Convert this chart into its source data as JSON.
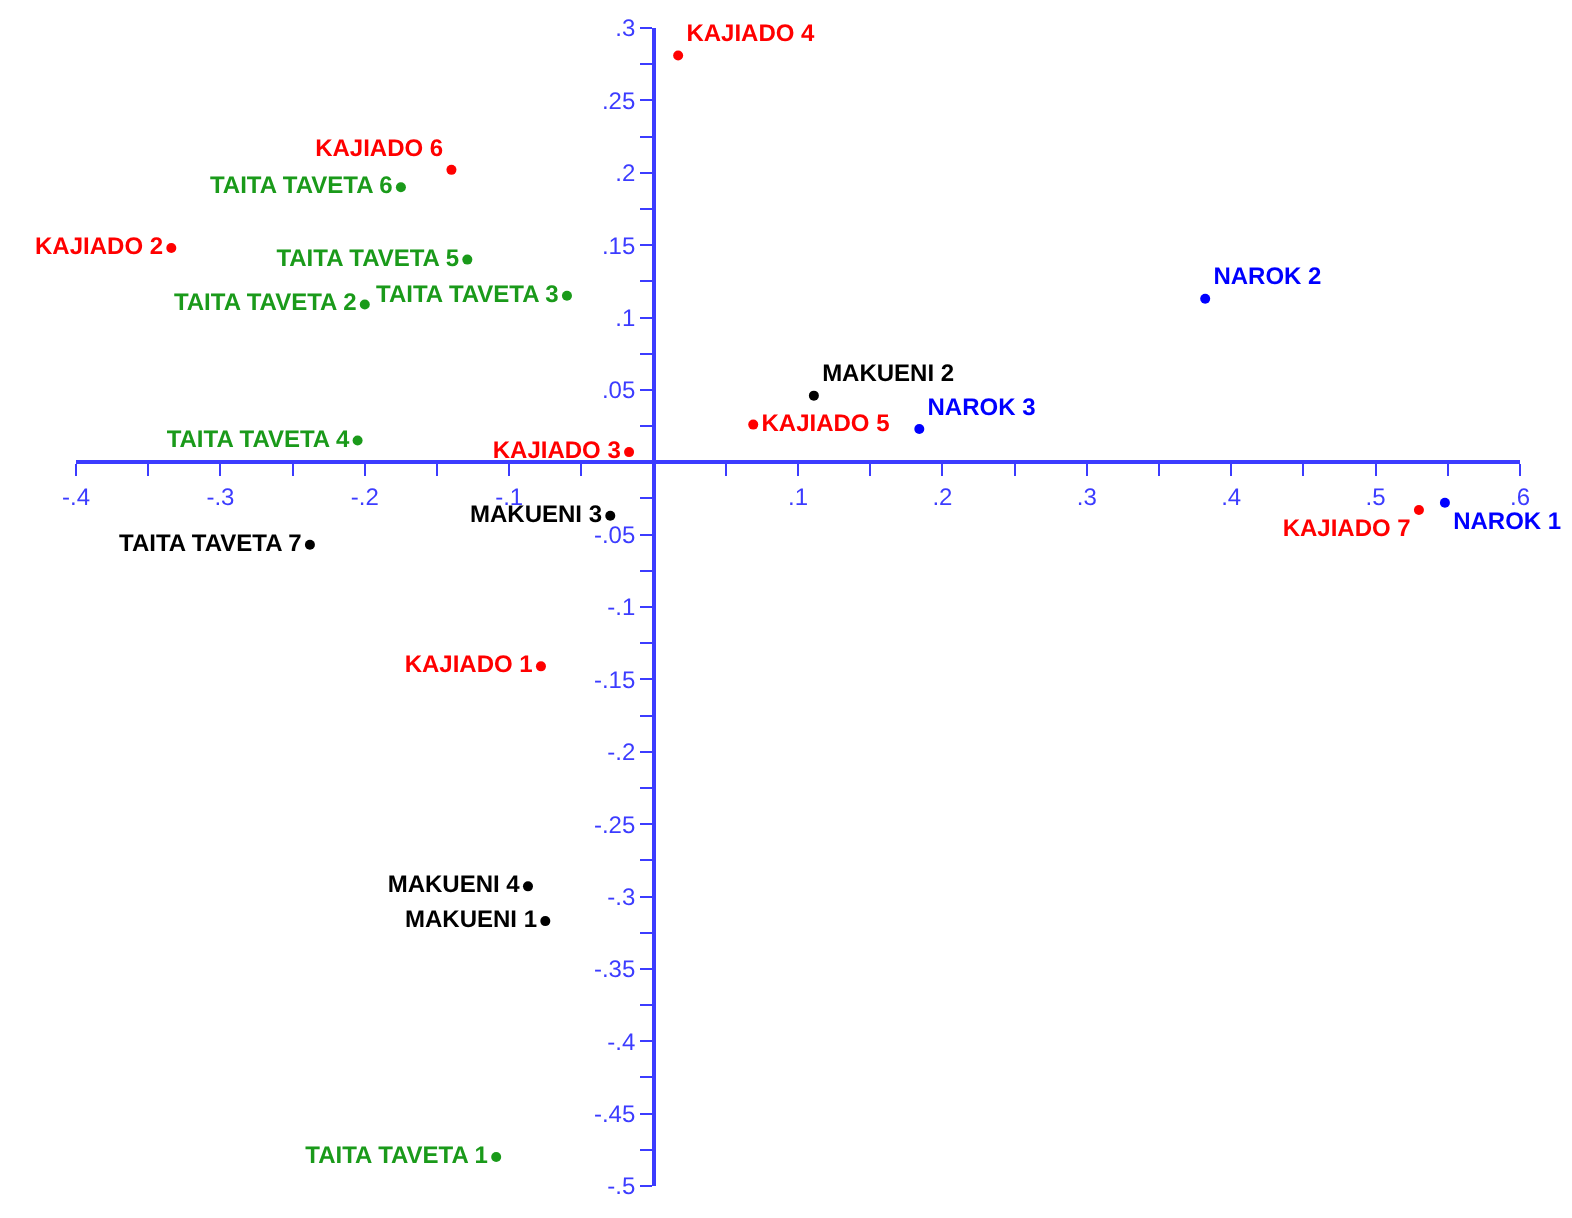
{
  "chart_data": {
    "type": "scatter",
    "marker": "circle",
    "legend": false,
    "xlim": [
      -0.4,
      0.6
    ],
    "ylim": [
      -0.5,
      0.3
    ],
    "xticks": [
      {
        "value": -0.4,
        "label": "-.4"
      },
      {
        "value": -0.35,
        "label": null
      },
      {
        "value": -0.3,
        "label": "-.3"
      },
      {
        "value": -0.25,
        "label": null
      },
      {
        "value": -0.2,
        "label": "-.2"
      },
      {
        "value": -0.15,
        "label": null
      },
      {
        "value": -0.1,
        "label": "-.1"
      },
      {
        "value": -0.05,
        "label": null
      },
      {
        "value": 0.05,
        "label": null
      },
      {
        "value": 0.1,
        "label": ".1"
      },
      {
        "value": 0.15,
        "label": null
      },
      {
        "value": 0.2,
        "label": ".2"
      },
      {
        "value": 0.25,
        "label": null
      },
      {
        "value": 0.3,
        "label": ".3"
      },
      {
        "value": 0.35,
        "label": null
      },
      {
        "value": 0.4,
        "label": ".4"
      },
      {
        "value": 0.45,
        "label": null
      },
      {
        "value": 0.5,
        "label": ".5"
      },
      {
        "value": 0.55,
        "label": null
      },
      {
        "value": 0.6,
        "label": ".6"
      }
    ],
    "yticks": [
      {
        "value": 0.3,
        "label": ".3"
      },
      {
        "value": 0.275,
        "label": null
      },
      {
        "value": 0.25,
        "label": ".25"
      },
      {
        "value": 0.225,
        "label": null
      },
      {
        "value": 0.2,
        "label": ".2"
      },
      {
        "value": 0.175,
        "label": null
      },
      {
        "value": 0.15,
        "label": ".15"
      },
      {
        "value": 0.125,
        "label": null
      },
      {
        "value": 0.1,
        "label": ".1"
      },
      {
        "value": 0.075,
        "label": null
      },
      {
        "value": 0.05,
        "label": ".05"
      },
      {
        "value": 0.025,
        "label": null
      },
      {
        "value": -0.025,
        "label": null
      },
      {
        "value": -0.05,
        "label": "-.05"
      },
      {
        "value": -0.075,
        "label": null
      },
      {
        "value": -0.1,
        "label": "-.1"
      },
      {
        "value": -0.125,
        "label": null
      },
      {
        "value": -0.15,
        "label": "-.15"
      },
      {
        "value": -0.175,
        "label": null
      },
      {
        "value": -0.2,
        "label": "-.2"
      },
      {
        "value": -0.225,
        "label": null
      },
      {
        "value": -0.25,
        "label": "-.25"
      },
      {
        "value": -0.275,
        "label": null
      },
      {
        "value": -0.3,
        "label": "-.3"
      },
      {
        "value": -0.325,
        "label": null
      },
      {
        "value": -0.35,
        "label": "-.35"
      },
      {
        "value": -0.375,
        "label": null
      },
      {
        "value": -0.4,
        "label": "-.4"
      },
      {
        "value": -0.425,
        "label": null
      },
      {
        "value": -0.45,
        "label": "-.45"
      },
      {
        "value": -0.475,
        "label": null
      },
      {
        "value": -0.5,
        "label": "-.5"
      }
    ],
    "series": [
      {
        "name": "KAJIADO 4",
        "color": "#ff0000",
        "x": [
          0.017
        ],
        "values": [
          0.281
        ]
      },
      {
        "name": "KAJIADO 6",
        "color": "#ff0000",
        "x": [
          -0.14
        ],
        "values": [
          0.202
        ]
      },
      {
        "name": "TAITA TAVETA 6",
        "color": "#1a9a1a",
        "x": [
          -0.175
        ],
        "values": [
          0.19
        ]
      },
      {
        "name": "TAITA TAVETA 5",
        "color": "#1a9a1a",
        "x": [
          -0.129
        ],
        "values": [
          0.14
        ]
      },
      {
        "name": "KAJIADO 2",
        "color": "#ff0000",
        "x": [
          -0.334
        ],
        "values": [
          0.148
        ]
      },
      {
        "name": "TAITA TAVETA 3",
        "color": "#1a9a1a",
        "x": [
          -0.06
        ],
        "values": [
          0.115
        ]
      },
      {
        "name": "TAITA TAVETA 2",
        "color": "#1a9a1a",
        "x": [
          -0.2
        ],
        "values": [
          0.109
        ]
      },
      {
        "name": "NAROK 2",
        "color": "#0000ff",
        "x": [
          0.382
        ],
        "values": [
          0.113
        ]
      },
      {
        "name": "MAKUENI 2",
        "color": "#000000",
        "x": [
          0.111
        ],
        "values": [
          0.046
        ]
      },
      {
        "name": "KAJIADO 5",
        "color": "#ff0000",
        "x": [
          0.069
        ],
        "values": [
          0.026
        ]
      },
      {
        "name": "NAROK 3",
        "color": "#0000ff",
        "x": [
          0.184
        ],
        "values": [
          0.023
        ]
      },
      {
        "name": "TAITA TAVETA 4",
        "color": "#1a9a1a",
        "x": [
          -0.205
        ],
        "values": [
          0.015
        ]
      },
      {
        "name": "KAJIADO 3",
        "color": "#ff0000",
        "x": [
          -0.017
        ],
        "values": [
          0.007
        ]
      },
      {
        "name": "NAROK 1",
        "color": "#0000ff",
        "x": [
          0.548
        ],
        "values": [
          -0.028
        ]
      },
      {
        "name": "KAJIADO 7",
        "color": "#ff0000",
        "x": [
          0.53
        ],
        "values": [
          -0.033
        ]
      },
      {
        "name": "MAKUENI 3",
        "color": "#000000",
        "x": [
          -0.03
        ],
        "values": [
          -0.037
        ]
      },
      {
        "name": "TAITA TAVETA 7",
        "color": "#000000",
        "x": [
          -0.238
        ],
        "values": [
          -0.057
        ]
      },
      {
        "name": "KAJIADO 1",
        "color": "#ff0000",
        "x": [
          -0.078
        ],
        "values": [
          -0.141
        ]
      },
      {
        "name": "MAKUENI 4",
        "color": "#000000",
        "x": [
          -0.087
        ],
        "values": [
          -0.293
        ]
      },
      {
        "name": "MAKUENI 1",
        "color": "#000000",
        "x": [
          -0.075
        ],
        "values": [
          -0.317
        ]
      },
      {
        "name": "TAITA TAVETA 1",
        "color": "#1a9a1a",
        "x": [
          -0.109
        ],
        "values": [
          -0.48
        ]
      }
    ]
  }
}
